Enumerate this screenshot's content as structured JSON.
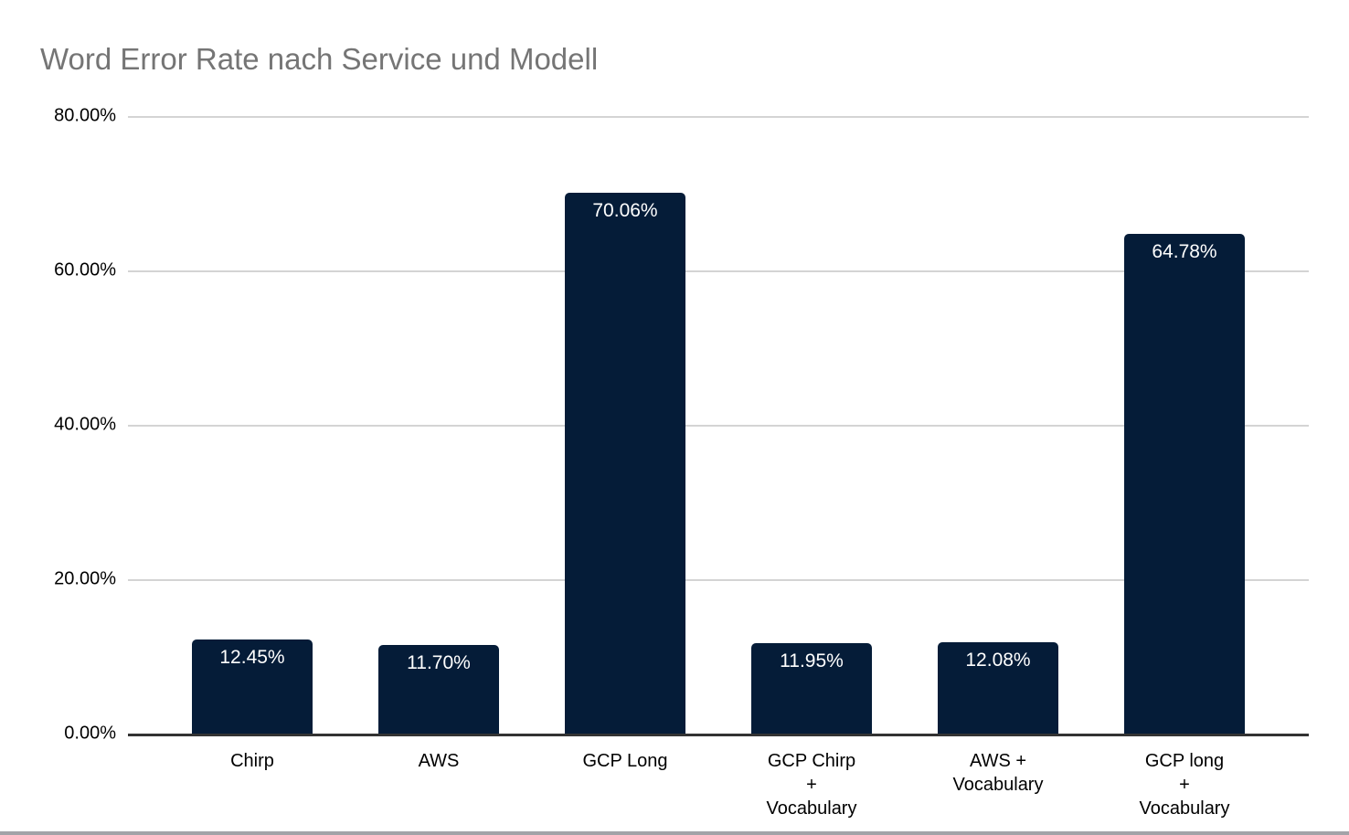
{
  "chart_data": {
    "type": "bar",
    "title": "Word Error Rate nach Service und Modell",
    "categories": [
      "Chirp",
      "AWS",
      "GCP Long",
      "GCP Chirp + Vocabulary",
      "AWS + Vocabulary",
      "GCP long + Vocabulary"
    ],
    "values": [
      12.45,
      11.7,
      70.06,
      11.95,
      12.08,
      64.78
    ],
    "value_labels": [
      "12.45%",
      "11.70%",
      "70.06%",
      "11.95%",
      "12.08%",
      "64.78%"
    ],
    "xlabel": "",
    "ylabel": "",
    "ylim": [
      0,
      80
    ],
    "yticks": [
      {
        "value": 80,
        "label": "80.00%"
      },
      {
        "value": 60,
        "label": "60.00%"
      },
      {
        "value": 40,
        "label": "40.00%"
      },
      {
        "value": 20,
        "label": "20.00%"
      },
      {
        "value": 0,
        "label": "0.00%"
      }
    ],
    "grid": true,
    "legend": "none"
  },
  "colors": {
    "bar": "#051c38",
    "bar_value_label": "#ffffff",
    "title": "#757575",
    "gridline": "#d4d4d4",
    "axis_baseline": "#333333",
    "axis_labels": "#000000",
    "bottom_divider": "#a3a3a8"
  }
}
